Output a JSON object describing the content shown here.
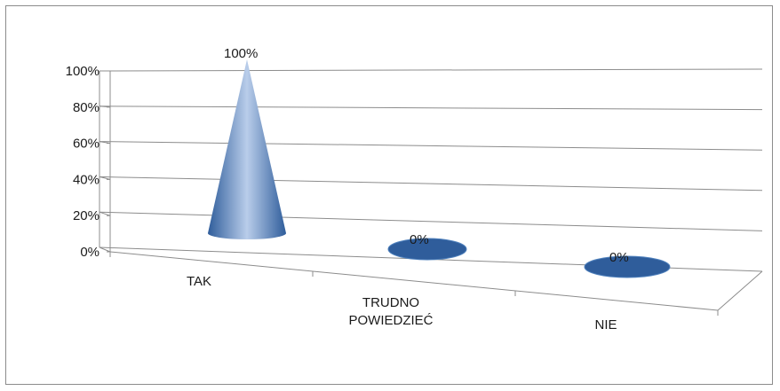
{
  "chart_data": {
    "type": "bar",
    "style": "3d-cone",
    "categories": [
      "TAK",
      "TRUDNO POWIEDZIEĆ",
      "NIE"
    ],
    "category_lines": [
      [
        "TAK"
      ],
      [
        "TRUDNO",
        "POWIEDZIEĆ"
      ],
      [
        "NIE"
      ]
    ],
    "values": [
      100,
      0,
      0
    ],
    "data_labels": [
      "100%",
      "0%",
      "0%"
    ],
    "y_ticks": [
      "0%",
      "20%",
      "40%",
      "60%",
      "80%",
      "100%"
    ],
    "ylim": [
      0,
      100
    ],
    "grid": true,
    "legend": "none",
    "colors": {
      "cone_dark": "#2f5d9b",
      "cone_mid": "#4f81bd",
      "cone_light": "#b9cdea",
      "grid": "#8c8c8c",
      "frame": "#8c8c8c"
    }
  }
}
